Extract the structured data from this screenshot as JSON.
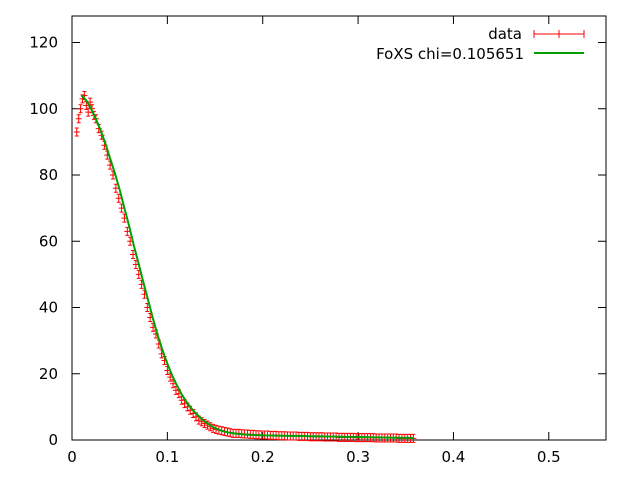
{
  "chart_data": {
    "type": "line",
    "title": "",
    "xlabel": "",
    "ylabel": "",
    "xlim": [
      0,
      0.56
    ],
    "ylim": [
      0,
      128
    ],
    "x_ticks": [
      0,
      0.1,
      0.2,
      0.3,
      0.4,
      0.5
    ],
    "x_tick_labels": [
      "0",
      "0.1",
      "0.2",
      "0.3",
      "0.4",
      "0.5"
    ],
    "y_ticks": [
      0,
      20,
      40,
      60,
      80,
      100,
      120
    ],
    "y_tick_labels": [
      "0",
      "20",
      "40",
      "60",
      "80",
      "100",
      "120"
    ],
    "grid": false,
    "legend_position": "top-right",
    "series": [
      {
        "name": "data",
        "style": "errorbars",
        "color": "#ff0000",
        "x": [
          0.005,
          0.007,
          0.009,
          0.011,
          0.013,
          0.015,
          0.017,
          0.019,
          0.021,
          0.023,
          0.025,
          0.028,
          0.031,
          0.034,
          0.037,
          0.04,
          0.043,
          0.046,
          0.049,
          0.052,
          0.055,
          0.058,
          0.061,
          0.064,
          0.067,
          0.07,
          0.073,
          0.076,
          0.079,
          0.082,
          0.085,
          0.088,
          0.091,
          0.094,
          0.097,
          0.1,
          0.103,
          0.106,
          0.109,
          0.112,
          0.115,
          0.118,
          0.121,
          0.124,
          0.127,
          0.13,
          0.133,
          0.136,
          0.139,
          0.142,
          0.145,
          0.148,
          0.151,
          0.154,
          0.157,
          0.16,
          0.163,
          0.166,
          0.169,
          0.172,
          0.175,
          0.178,
          0.181,
          0.184,
          0.187,
          0.19,
          0.193,
          0.196,
          0.199,
          0.202,
          0.205,
          0.208,
          0.211,
          0.214,
          0.217,
          0.22,
          0.223,
          0.226,
          0.229,
          0.232,
          0.235,
          0.238,
          0.241,
          0.244,
          0.247,
          0.25,
          0.253,
          0.256,
          0.259,
          0.262,
          0.265,
          0.268,
          0.271,
          0.274,
          0.277,
          0.28,
          0.283,
          0.286,
          0.289,
          0.292,
          0.295,
          0.298,
          0.301,
          0.304,
          0.307,
          0.31,
          0.313,
          0.316,
          0.319,
          0.322,
          0.325,
          0.328,
          0.331,
          0.334,
          0.337,
          0.34,
          0.343,
          0.346,
          0.349,
          0.352,
          0.355,
          0.358
        ],
        "y": [
          93,
          97,
          100,
          103,
          104,
          101,
          99,
          102,
          100,
          98,
          97,
          94,
          92,
          89,
          86,
          83,
          80,
          76,
          73,
          70,
          67,
          63,
          60,
          56,
          53,
          50,
          47,
          44,
          40,
          37,
          34,
          32,
          29,
          26,
          24,
          21,
          19,
          17,
          15,
          14,
          12,
          11,
          10,
          9,
          8,
          7,
          6,
          5.5,
          5,
          4.5,
          4,
          3.5,
          3.2,
          3,
          2.8,
          2.6,
          2.4,
          2.2,
          2,
          2,
          2,
          1.9,
          1.8,
          1.8,
          1.7,
          1.7,
          1.6,
          1.6,
          1.5,
          1.5,
          1.5,
          1.4,
          1.4,
          1.4,
          1.3,
          1.3,
          1.3,
          1.2,
          1.2,
          1.2,
          1.2,
          1.1,
          1.1,
          1.1,
          1.1,
          1.0,
          1.0,
          1.0,
          1.0,
          1.0,
          0.9,
          0.9,
          0.9,
          0.9,
          0.9,
          0.8,
          0.8,
          0.8,
          0.8,
          0.8,
          0.8,
          0.7,
          0.7,
          0.7,
          0.7,
          0.7,
          0.7,
          0.7,
          0.6,
          0.6,
          0.6,
          0.6,
          0.6,
          0.6,
          0.6,
          0.6,
          0.5,
          0.5,
          0.5,
          0.5,
          0.5,
          0.5
        ]
      },
      {
        "name": "FoXS chi=0.105651",
        "style": "line",
        "color": "#00a000",
        "x": [
          0.01,
          0.015,
          0.02,
          0.025,
          0.03,
          0.035,
          0.04,
          0.045,
          0.05,
          0.055,
          0.06,
          0.065,
          0.07,
          0.075,
          0.08,
          0.085,
          0.09,
          0.095,
          0.1,
          0.105,
          0.11,
          0.115,
          0.12,
          0.125,
          0.13,
          0.135,
          0.14,
          0.145,
          0.15,
          0.155,
          0.16,
          0.165,
          0.17,
          0.175,
          0.18,
          0.185,
          0.19,
          0.2,
          0.21,
          0.22,
          0.23,
          0.24,
          0.25,
          0.26,
          0.27,
          0.28,
          0.29,
          0.3,
          0.31,
          0.32,
          0.33,
          0.34,
          0.35,
          0.358
        ],
        "y": [
          104,
          102.5,
          100,
          97,
          93.5,
          89.5,
          85,
          80.5,
          75.5,
          70,
          64.5,
          58.5,
          53,
          47.5,
          42,
          36.5,
          31.5,
          27,
          23,
          19.5,
          16.5,
          13.8,
          11.5,
          9.6,
          8.0,
          6.6,
          5.4,
          4.4,
          3.6,
          3.0,
          2.5,
          2.2,
          2.0,
          1.8,
          1.7,
          1.6,
          1.5,
          1.4,
          1.35,
          1.3,
          1.25,
          1.2,
          1.15,
          1.1,
          1.05,
          1.0,
          0.95,
          0.9,
          0.85,
          0.8,
          0.75,
          0.7,
          0.65,
          0.6
        ]
      }
    ]
  }
}
